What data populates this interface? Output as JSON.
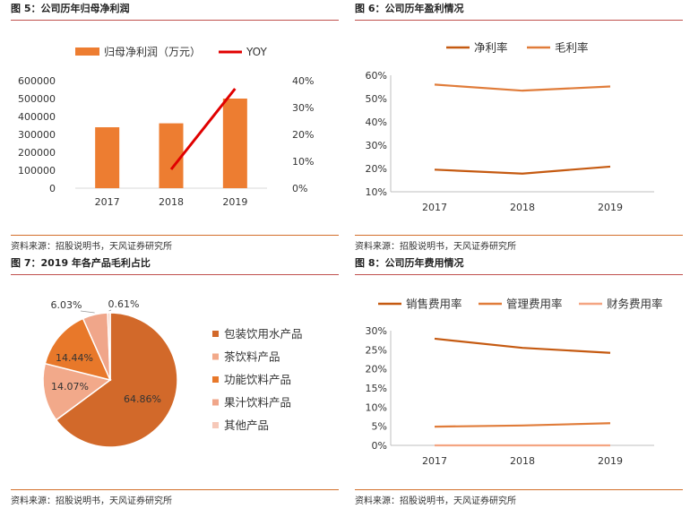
{
  "panels": [
    {
      "title": "图 5：公司历年归母净利润",
      "source": "资料来源：招股说明书，天风证券研究所",
      "chart_data": {
        "type": "bar",
        "categories": [
          "2017",
          "2018",
          "2019"
        ],
        "series": [
          {
            "name": "归母净利润（万元）",
            "type": "bar",
            "axis": "left",
            "color": "#ed7d31",
            "values": [
              340000,
              362000,
              500000
            ]
          },
          {
            "name": "YOY",
            "type": "line",
            "axis": "right",
            "color": "#e00000",
            "values": [
              null,
              7,
              37
            ]
          }
        ],
        "yticks": [
          "0",
          "100000",
          "200000",
          "300000",
          "400000",
          "500000",
          "600000"
        ],
        "y2ticks": [
          "0%",
          "10%",
          "20%",
          "30%",
          "40%"
        ],
        "ylim": [
          0,
          600000
        ],
        "y2lim": [
          0,
          40
        ],
        "legend": "top"
      }
    },
    {
      "title": "图 6：公司历年盈利情况",
      "source": "资料来源：招股说明书，天风证券研究所",
      "chart_data": {
        "type": "line",
        "categories": [
          "2017",
          "2018",
          "2019"
        ],
        "series": [
          {
            "name": "净利率",
            "color": "#c55a11",
            "values": [
              19.5,
              17.8,
              20.8
            ]
          },
          {
            "name": "毛利率",
            "color": "#e07c3a",
            "values": [
              56,
              53.4,
              55.2
            ]
          }
        ],
        "yticks": [
          "10%",
          "20%",
          "30%",
          "40%",
          "50%",
          "60%"
        ],
        "ylim": [
          10,
          60
        ],
        "legend": "top"
      }
    },
    {
      "title": "图 7：2019 年各产品毛利占比",
      "source": "资料来源：招股说明书，天风证券研究所",
      "chart_data": {
        "type": "pie",
        "labels": [
          "包装饮用水产品",
          "茶饮料产品",
          "功能饮料产品",
          "果汁饮料产品",
          "其他产品"
        ],
        "values": [
          64.86,
          14.07,
          14.44,
          6.03,
          0.61
        ],
        "data_labels": [
          "64.86%",
          "14.07%",
          "14.44%",
          "6.03%",
          "0.61%"
        ],
        "colors": [
          "#d2692a",
          "#f2a98a",
          "#e8782a",
          "#f0a68a",
          "#f6c8b8"
        ],
        "legend": "right"
      }
    },
    {
      "title": "图 8：公司历年费用情况",
      "source": "资料来源：招股说明书，天风证券研究所",
      "chart_data": {
        "type": "line",
        "categories": [
          "2017",
          "2018",
          "2019"
        ],
        "series": [
          {
            "name": "销售费用率",
            "color": "#c55a11",
            "values": [
              27.9,
              25.5,
              24.2
            ]
          },
          {
            "name": "管理费用率",
            "color": "#e07c3a",
            "values": [
              4.9,
              5.2,
              5.8
            ]
          },
          {
            "name": "财务费用率",
            "color": "#f4a582",
            "values": [
              0,
              0,
              0
            ]
          }
        ],
        "yticks": [
          "0%",
          "5%",
          "10%",
          "15%",
          "20%",
          "25%",
          "30%"
        ],
        "ylim": [
          0,
          30
        ],
        "legend": "top"
      }
    }
  ]
}
